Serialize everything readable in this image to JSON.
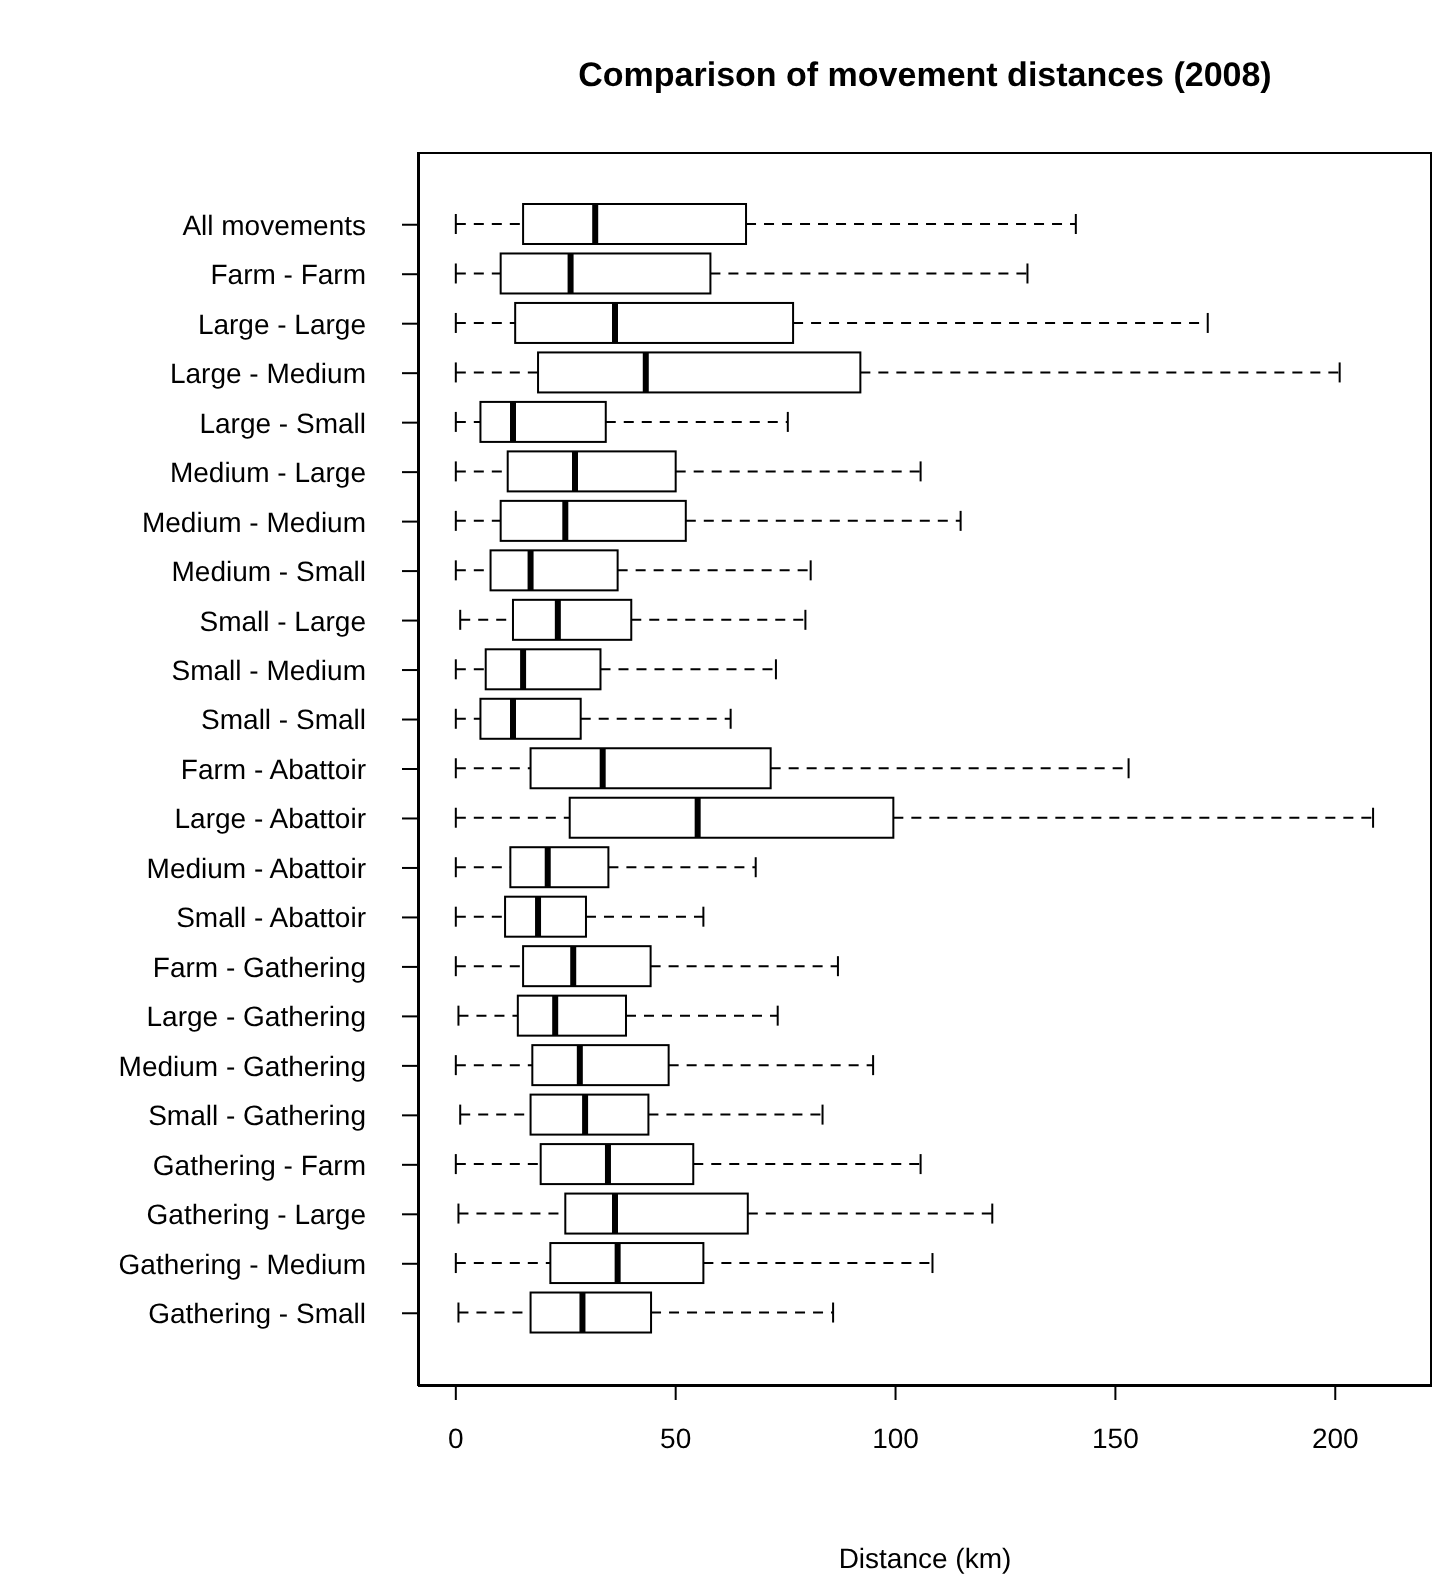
{
  "chart_data": {
    "type": "box",
    "title": "Comparison of movement distances (2008)",
    "xlabel": "Distance (km)",
    "orientation": "horizontal",
    "categories": [
      "All movements",
      "Farm - Farm",
      "Large - Large",
      "Large - Medium",
      "Large - Small",
      "Medium - Large",
      "Medium - Medium",
      "Medium - Small",
      "Small - Large",
      "Small - Medium",
      "Small - Small",
      "Farm - Abattoir",
      "Large - Abattoir",
      "Medium - Abattoir",
      "Small - Abattoir",
      "Farm - Gathering",
      "Large - Gathering",
      "Medium - Gathering",
      "Small - Gathering",
      "Gathering - Farm",
      "Gathering - Large",
      "Gathering - Medium",
      "Gathering - Small"
    ],
    "boxes": [
      {
        "low": 0,
        "q1": 15.3,
        "median": 31.7,
        "q3": 66,
        "high": 141
      },
      {
        "low": 0,
        "q1": 10.2,
        "median": 26.1,
        "q3": 57.9,
        "high": 130
      },
      {
        "low": 0,
        "q1": 13.5,
        "median": 36.2,
        "q3": 76.7,
        "high": 171
      },
      {
        "low": 0,
        "q1": 18.7,
        "median": 43.2,
        "q3": 92,
        "high": 201
      },
      {
        "low": 0,
        "q1": 5.6,
        "median": 13,
        "q3": 34.1,
        "high": 75.5
      },
      {
        "low": 0,
        "q1": 11.8,
        "median": 27.1,
        "q3": 50,
        "high": 105.7
      },
      {
        "low": 0,
        "q1": 10.2,
        "median": 24.9,
        "q3": 52.3,
        "high": 114.8
      },
      {
        "low": 0,
        "q1": 7.9,
        "median": 17,
        "q3": 36.8,
        "high": 80.7
      },
      {
        "low": 1,
        "q1": 13,
        "median": 23.2,
        "q3": 39.9,
        "high": 79.5
      },
      {
        "low": 0,
        "q1": 6.8,
        "median": 15.3,
        "q3": 32.9,
        "high": 72.8
      },
      {
        "low": 0,
        "q1": 5.6,
        "median": 13,
        "q3": 28.4,
        "high": 62.5
      },
      {
        "low": 0,
        "q1": 17,
        "median": 33.4,
        "q3": 71.6,
        "high": 153
      },
      {
        "low": 0,
        "q1": 25.9,
        "median": 55,
        "q3": 99.5,
        "high": 208.6
      },
      {
        "low": 0,
        "q1": 12.4,
        "median": 20.9,
        "q3": 34.7,
        "high": 68.2
      },
      {
        "low": 0,
        "q1": 11.2,
        "median": 18.7,
        "q3": 29.6,
        "high": 56.3
      },
      {
        "low": 0,
        "q1": 15.3,
        "median": 26.7,
        "q3": 44.3,
        "high": 86.9
      },
      {
        "low": 0.6,
        "q1": 14.1,
        "median": 22.6,
        "q3": 38.7,
        "high": 73.2
      },
      {
        "low": 0,
        "q1": 17.4,
        "median": 28.2,
        "q3": 48.4,
        "high": 94.9
      },
      {
        "low": 1,
        "q1": 17,
        "median": 29.4,
        "q3": 43.8,
        "high": 83.4
      },
      {
        "low": 0,
        "q1": 19.3,
        "median": 34.6,
        "q3": 54,
        "high": 105.7
      },
      {
        "low": 0.6,
        "q1": 24.9,
        "median": 36.2,
        "q3": 66.4,
        "high": 122
      },
      {
        "low": 0,
        "q1": 21.5,
        "median": 36.8,
        "q3": 56.3,
        "high": 108.4
      },
      {
        "low": 0.6,
        "q1": 17,
        "median": 28.8,
        "q3": 44.4,
        "high": 85.8
      }
    ],
    "xlim": [
      -8.6,
      222
    ],
    "xticks": [
      0,
      50,
      100,
      150,
      200
    ]
  }
}
